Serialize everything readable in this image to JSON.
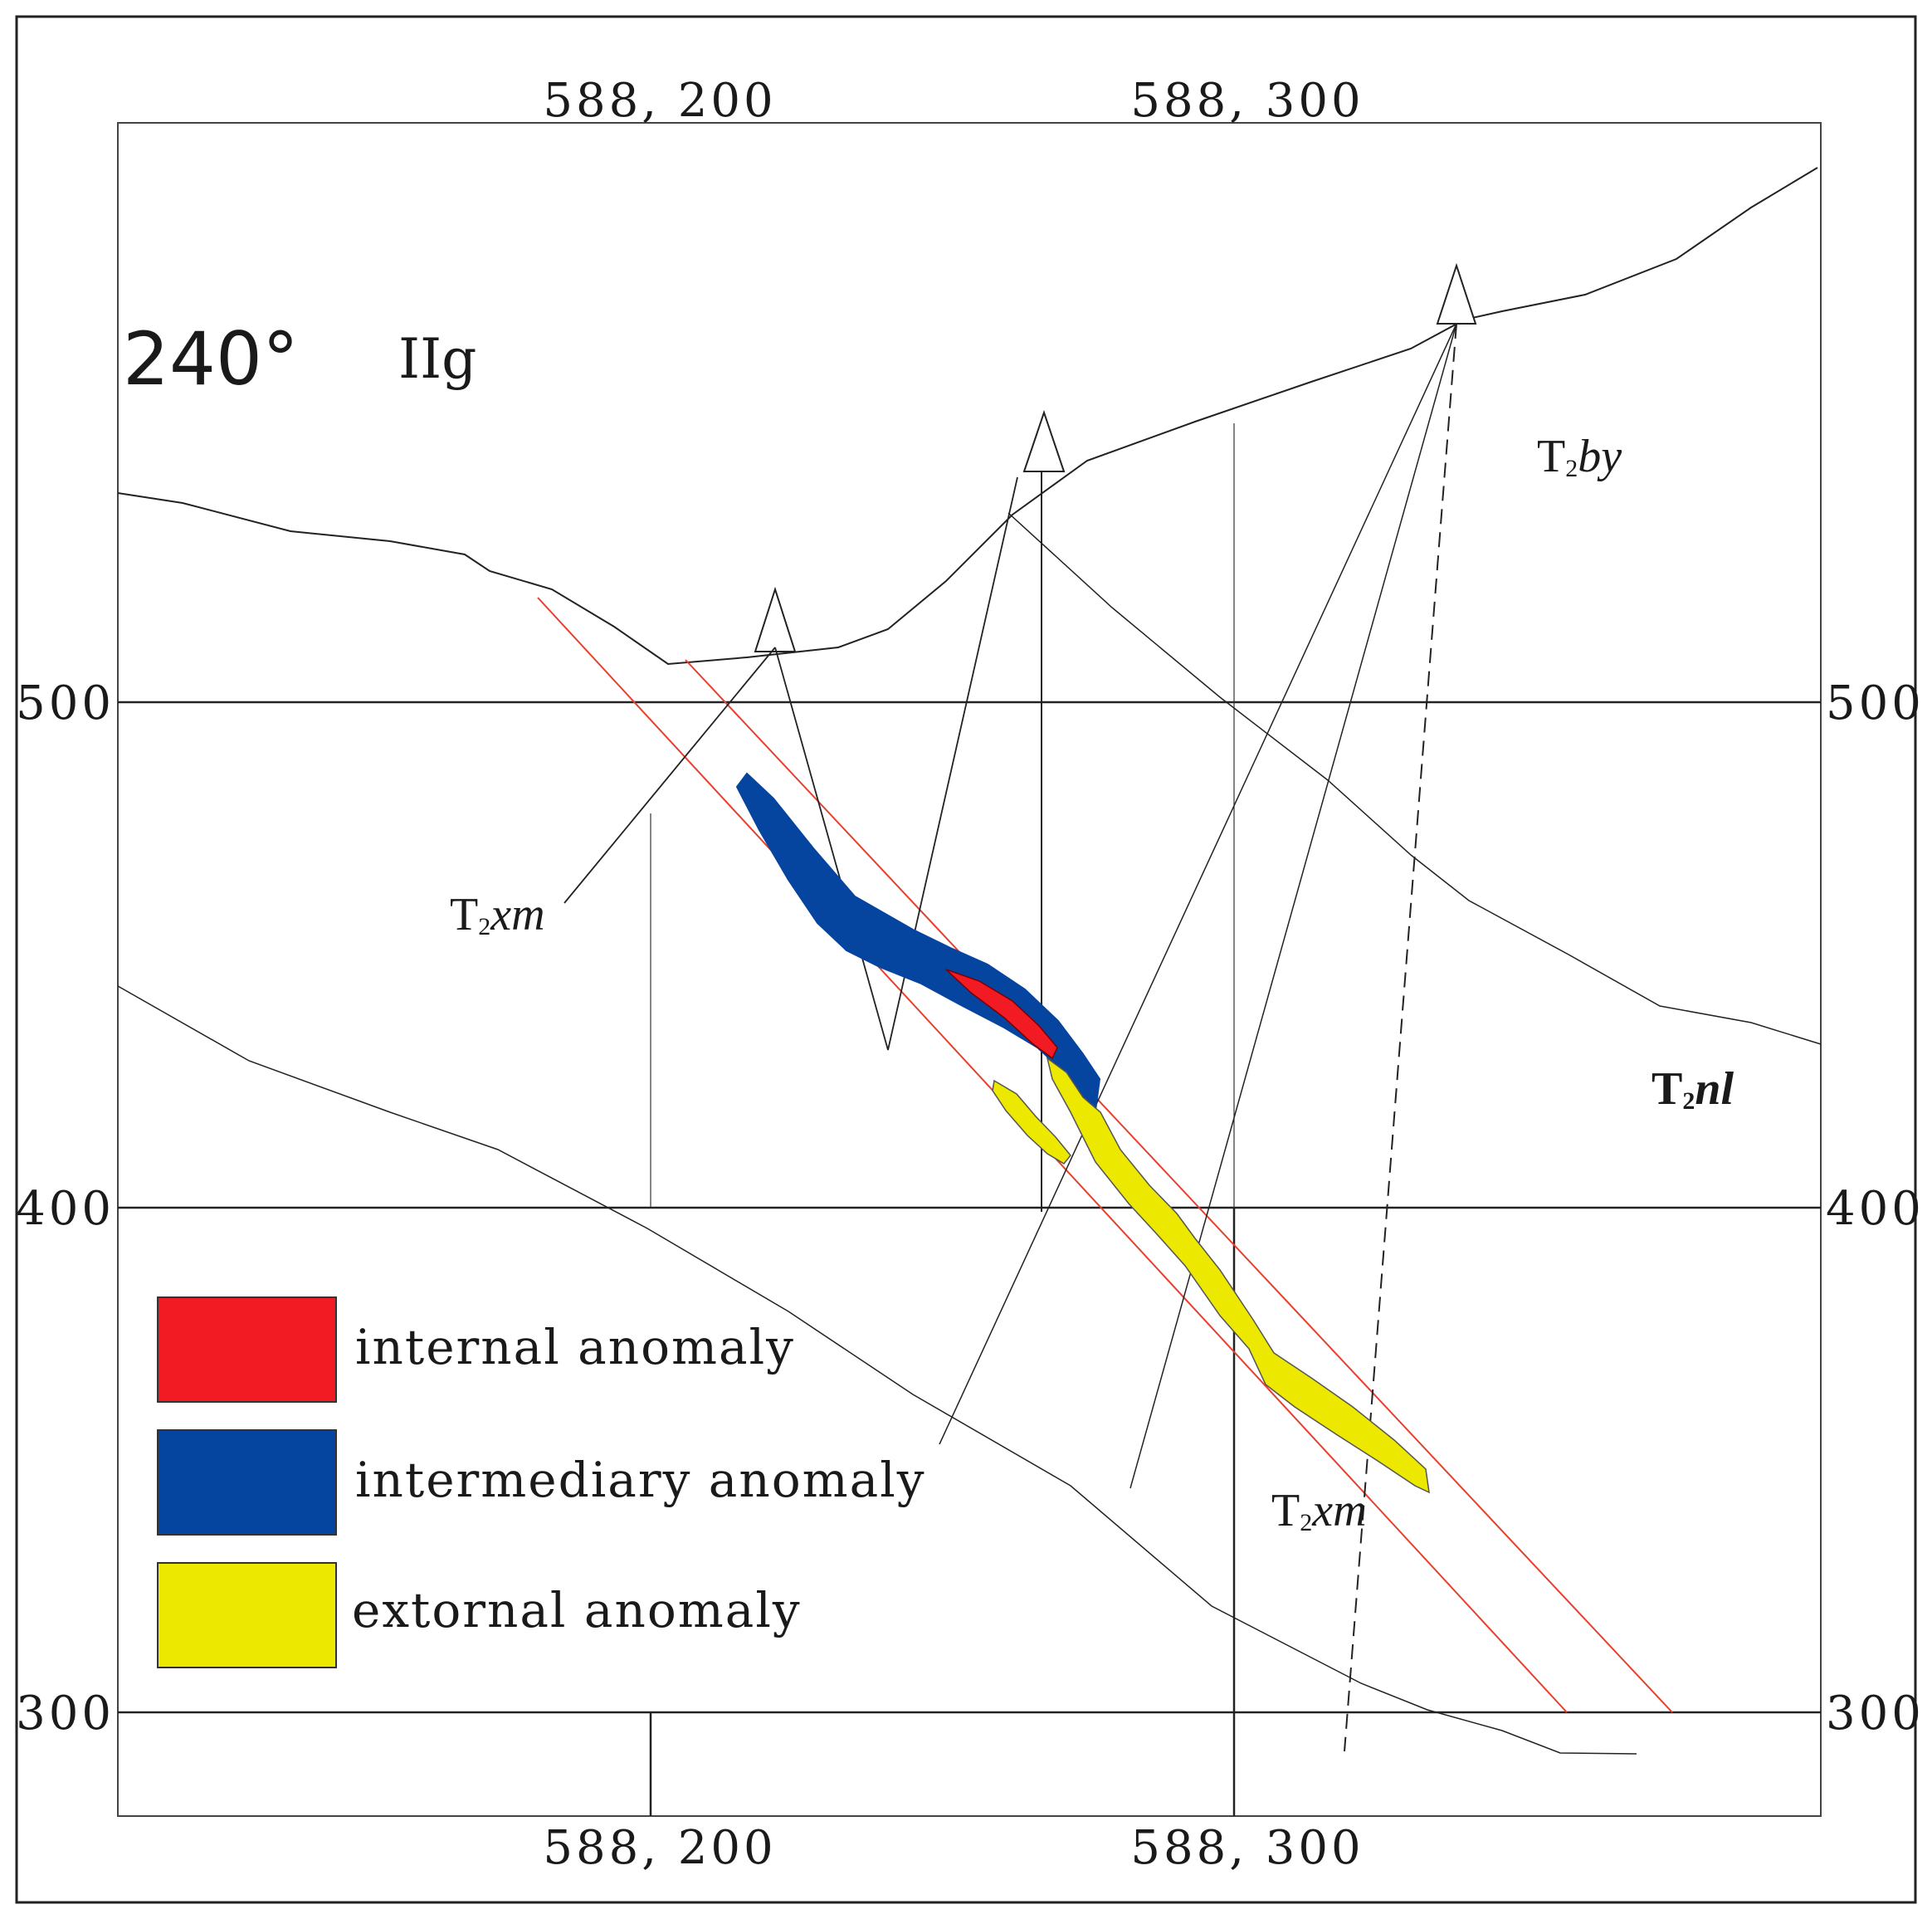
{
  "section": {
    "azimuth": "240°",
    "unit": "IIg"
  },
  "axes": {
    "top_ticks": [
      "588, 200",
      "588, 300"
    ],
    "bottom_ticks": [
      "588, 200",
      "588, 300"
    ],
    "left_ticks": [
      "500",
      "400",
      "300"
    ],
    "right_ticks": [
      "500",
      "400",
      "300"
    ]
  },
  "strata": [
    {
      "base": "T",
      "sub": "2",
      "italic": "by"
    },
    {
      "base": "T",
      "sub": "2",
      "italic": "nl"
    },
    {
      "base": "T",
      "sub": "2",
      "italic": "xm"
    },
    {
      "base": "T",
      "sub": "2",
      "italic": "xm"
    }
  ],
  "legend": [
    {
      "label": "internal anomaly",
      "color": "#f21b24"
    },
    {
      "label": "intermediary anomaly",
      "color": "#0545a0"
    },
    {
      "label": "extornal anomaly",
      "color": "#ede800"
    }
  ],
  "colors": {
    "fault": "#e8402e",
    "line": "#1a1a1a"
  }
}
